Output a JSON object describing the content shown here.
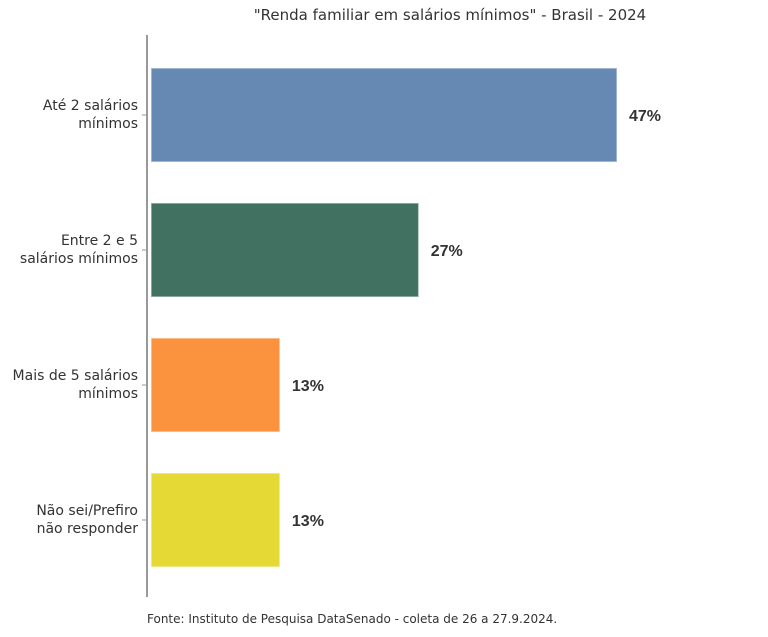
{
  "chart_data": {
    "type": "bar",
    "orientation": "horizontal",
    "title": "\"Renda familiar em salários mínimos\" - Brasil - 2024",
    "categories": [
      "Até 2 salários\nmínimos",
      "Entre 2 e 5\nsalários mínimos",
      "Mais de 5 salários\nmínimos",
      "Não sei/Prefiro\nnão responder"
    ],
    "values": [
      47,
      27,
      13,
      13
    ],
    "value_labels": [
      "47%",
      "27%",
      "13%",
      "13%"
    ],
    "colors": [
      "#6689b3",
      "#417261",
      "#fb923e",
      "#e5d936"
    ],
    "source": "Fonte: Instituto de Pesquisa DataSenado - coleta de 26 a 27.9.2024."
  }
}
